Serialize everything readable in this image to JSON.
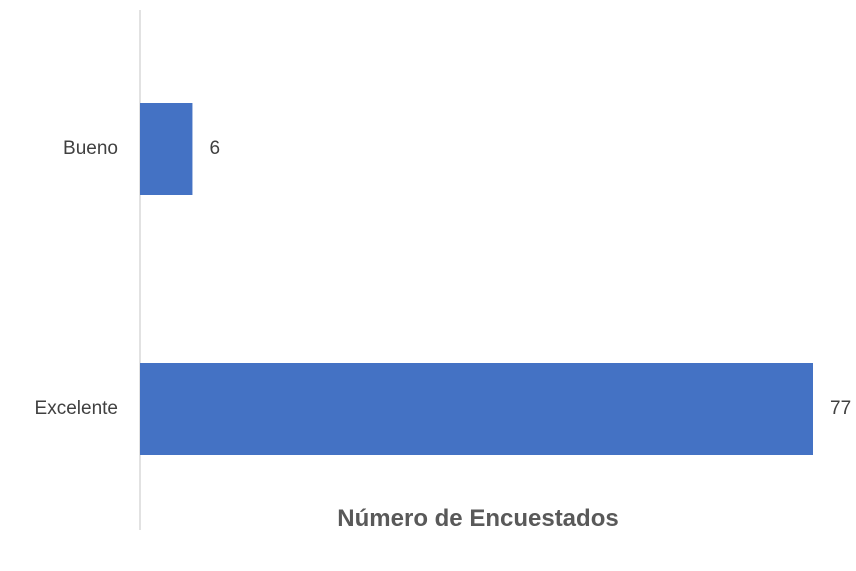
{
  "chart_data": {
    "type": "bar",
    "orientation": "horizontal",
    "categories": [
      "Bueno",
      "Excelente"
    ],
    "values": [
      6,
      77
    ],
    "xlabel": "Número de Encuestados",
    "ylabel": "",
    "xlim": [
      0,
      77
    ],
    "grid": false,
    "legend": "none",
    "bar_color": "#4472C4",
    "axis_color": "#D9D9D9",
    "text_color": "#404040"
  }
}
